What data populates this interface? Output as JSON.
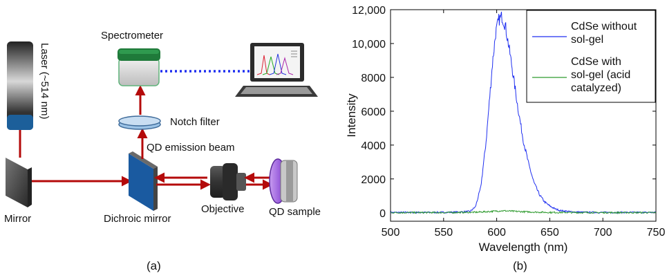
{
  "diagram": {
    "laser_label": "Laser (~514 nm)",
    "spectrometer_label": "Spectrometer",
    "notch_filter_label": "Notch filter",
    "emission_beam_label": "QD emission beam",
    "mirror_label": "Mirror",
    "dichroic_label": "Dichroic mirror",
    "objective_label": "Objective",
    "sample_label": "QD sample",
    "panel_label": "(a)"
  },
  "panel_b_label": "(b)",
  "colors": {
    "beam": "#b40a0a",
    "series_without": "#1f2ff0",
    "series_with": "#2e9a2e",
    "spectrometer_top": "#1f7a3a",
    "laser_bottom": "#1c5f9a",
    "dichroic": "#1a5aa0",
    "sample_lens": "#8a4bd6"
  },
  "chart_data": {
    "type": "line",
    "xlabel": "Wavelength (nm)",
    "ylabel": "Intensity",
    "xlim": [
      500,
      750
    ],
    "ylim": [
      -500,
      12000
    ],
    "xticks": [
      "500",
      "550",
      "600",
      "650",
      "700",
      "750"
    ],
    "yticks": [
      "0",
      "2000",
      "4000",
      "6000",
      "8000",
      "10,000",
      "12,000"
    ],
    "legend_position": "top-right",
    "grid": false,
    "series": [
      {
        "name": "CdSe without sol-gel",
        "x": [
          500,
          520,
          540,
          560,
          575,
          580,
          585,
          590,
          593,
          596,
          599,
          602,
          605,
          608,
          611,
          614,
          617,
          620,
          625,
          630,
          635,
          640,
          645,
          650,
          655,
          660,
          670,
          680,
          700,
          720,
          750
        ],
        "y": [
          20,
          20,
          20,
          30,
          80,
          350,
          1500,
          4200,
          6500,
          8800,
          10600,
          11400,
          11600,
          11100,
          10000,
          8800,
          7500,
          6200,
          4300,
          2900,
          1800,
          1100,
          650,
          400,
          230,
          130,
          60,
          30,
          20,
          20,
          20
        ]
      },
      {
        "name": "CdSe with sol-gel (acid catalyzed)",
        "x": [
          500,
          550,
          580,
          595,
          605,
          615,
          630,
          650,
          700,
          750
        ],
        "y": [
          10,
          10,
          30,
          80,
          120,
          90,
          50,
          20,
          10,
          10
        ]
      }
    ]
  }
}
